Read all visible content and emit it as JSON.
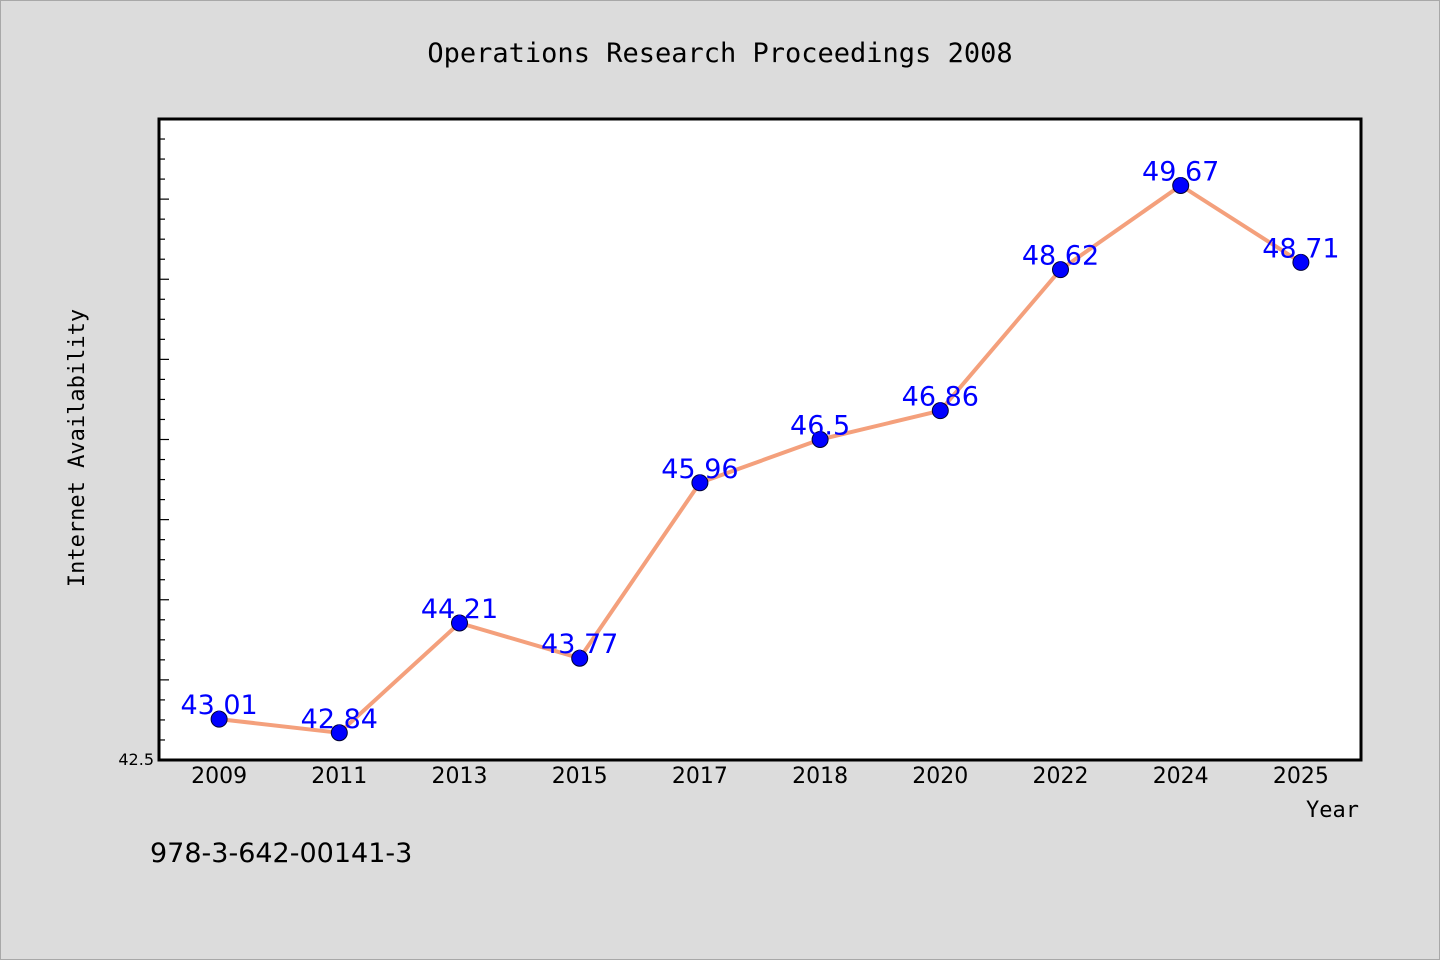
{
  "chart_data": {
    "type": "line",
    "title": "Operations Research Proceedings 2008",
    "xlabel": "Year",
    "ylabel": "Internet Availability",
    "categories": [
      "2009",
      "2011",
      "2013",
      "2015",
      "2017",
      "2018",
      "2020",
      "2022",
      "2024",
      "2025"
    ],
    "series": [
      {
        "values": [
          43.01,
          42.84,
          44.21,
          43.77,
          45.96,
          46.5,
          46.86,
          48.62,
          49.67,
          48.71
        ],
        "labels": [
          "43.01",
          "42.84",
          "44.21",
          "43.77",
          "45.96",
          "46.5",
          "46.86",
          "48.62",
          "49.67",
          "48.71"
        ],
        "line_color": "#f4a07c",
        "marker_color": "#0000ff"
      }
    ],
    "ylim": [
      42.5,
      50.5
    ],
    "yticks_labeled": [
      "42.5"
    ],
    "grid": false,
    "legend": false
  },
  "footer_text": "978-3-642-00141-3"
}
